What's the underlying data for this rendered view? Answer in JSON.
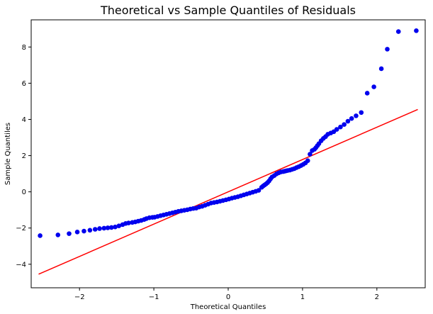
{
  "chart_data": {
    "type": "scatter",
    "title": "Theoretical vs Sample Quantiles of Residuals",
    "xlabel": "Theoretical Quantiles",
    "ylabel": "Sample Quantiles",
    "xlim": [
      -2.65,
      2.65
    ],
    "ylim": [
      -5.3,
      9.5
    ],
    "xticks": [
      -2,
      -1,
      0,
      1,
      2
    ],
    "yticks": [
      -4,
      -2,
      0,
      2,
      4,
      6,
      8
    ],
    "grid": false,
    "point_color": "#0000ee",
    "line_color": "#ff0000",
    "points": {
      "x": [
        -2.53,
        -2.29,
        -2.14,
        -2.03,
        -1.94,
        -1.86,
        -1.79,
        -1.73,
        -1.67,
        -1.62,
        -1.57,
        -1.52,
        -1.47,
        -1.42,
        -1.38,
        -1.34,
        -1.29,
        -1.25,
        -1.21,
        -1.17,
        -1.13,
        -1.1,
        -1.06,
        -1.02,
        -0.99,
        -0.95,
        -0.91,
        -0.87,
        -0.83,
        -0.79,
        -0.75,
        -0.71,
        -0.67,
        -0.63,
        -0.59,
        -0.55,
        -0.51,
        -0.47,
        -0.43,
        -0.39,
        -0.35,
        -0.31,
        -0.27,
        -0.23,
        -0.19,
        -0.15,
        -0.11,
        -0.07,
        -0.03,
        0.01,
        0.05,
        0.09,
        0.13,
        0.17,
        0.21,
        0.25,
        0.29,
        0.33,
        0.37,
        0.41,
        0.45,
        0.47,
        0.49,
        0.51,
        0.53,
        0.55,
        0.57,
        0.59,
        0.62,
        0.65,
        0.68,
        0.71,
        0.74,
        0.76,
        0.78,
        0.8,
        0.83,
        0.86,
        0.89,
        0.92,
        0.95,
        0.98,
        1.01,
        1.04,
        1.07,
        1.1,
        1.13,
        1.16,
        1.18,
        1.2,
        1.22,
        1.25,
        1.28,
        1.31,
        1.34,
        1.38,
        1.42,
        1.46,
        1.51,
        1.56,
        1.61,
        1.66,
        1.72,
        1.79,
        1.87,
        1.96,
        2.06,
        2.14,
        2.29,
        2.53
      ],
      "y": [
        -2.42,
        -2.38,
        -2.31,
        -2.22,
        -2.17,
        -2.12,
        -2.07,
        -2.03,
        -2.01,
        -1.99,
        -1.97,
        -1.94,
        -1.88,
        -1.81,
        -1.75,
        -1.72,
        -1.69,
        -1.66,
        -1.62,
        -1.58,
        -1.53,
        -1.48,
        -1.43,
        -1.41,
        -1.4,
        -1.36,
        -1.32,
        -1.28,
        -1.24,
        -1.2,
        -1.16,
        -1.12,
        -1.08,
        -1.05,
        -1.02,
        -0.99,
        -0.95,
        -0.92,
        -0.9,
        -0.84,
        -0.8,
        -0.74,
        -0.68,
        -0.62,
        -0.59,
        -0.56,
        -0.52,
        -0.48,
        -0.44,
        -0.4,
        -0.35,
        -0.31,
        -0.27,
        -0.22,
        -0.17,
        -0.12,
        -0.07,
        -0.02,
        0.03,
        0.08,
        0.25,
        0.32,
        0.38,
        0.44,
        0.51,
        0.6,
        0.72,
        0.82,
        0.9,
        0.99,
        1.05,
        1.1,
        1.12,
        1.14,
        1.16,
        1.18,
        1.2,
        1.24,
        1.28,
        1.34,
        1.39,
        1.45,
        1.52,
        1.6,
        1.72,
        2.08,
        2.28,
        2.35,
        2.44,
        2.55,
        2.66,
        2.82,
        2.95,
        3.05,
        3.18,
        3.25,
        3.32,
        3.45,
        3.58,
        3.72,
        3.9,
        4.05,
        4.2,
        4.38,
        5.45,
        5.8,
        6.8,
        7.88,
        8.85,
        8.9
      ]
    },
    "reference_line": {
      "x": [
        -2.55,
        2.55
      ],
      "y": [
        -4.55,
        4.55
      ]
    }
  }
}
